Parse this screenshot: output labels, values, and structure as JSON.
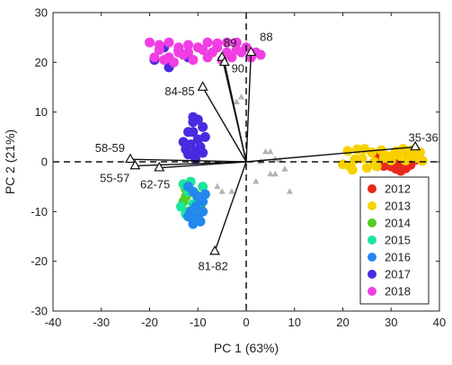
{
  "chart_data": {
    "type": "scatter",
    "title": "",
    "xlabel": "PC 1 (63%)",
    "ylabel": "PC 2 (21%)",
    "xlim": [
      -40,
      40
    ],
    "ylim": [
      -30,
      30
    ],
    "xticks": [
      -40,
      -30,
      -20,
      -10,
      0,
      10,
      20,
      30,
      40
    ],
    "yticks": [
      -30,
      -20,
      -10,
      0,
      10,
      20,
      30
    ],
    "reference_lines": {
      "x0": "dashed",
      "y0": "dashed"
    },
    "legend_position": "bottom-right",
    "series": [
      {
        "name": "2012",
        "color": "#e8281a",
        "points": [
          [
            27,
            1.5
          ],
          [
            28,
            0.6
          ],
          [
            29,
            -0.2
          ],
          [
            30,
            -0.9
          ],
          [
            31,
            -1.4
          ],
          [
            32,
            -1.8
          ],
          [
            33,
            -1.3
          ],
          [
            34,
            -0.6
          ],
          [
            35,
            0.4
          ],
          [
            32.5,
            0.9
          ],
          [
            30.5,
            0.2
          ],
          [
            28.5,
            -0.8
          ],
          [
            33.5,
            -0.2
          ],
          [
            29.5,
            0.9
          ],
          [
            31.5,
            -0.7
          ]
        ]
      },
      {
        "name": "2013",
        "color": "#f7d100",
        "points": [
          [
            20,
            -0.5
          ],
          [
            21,
            2.2
          ],
          [
            22,
            -1.6
          ],
          [
            23,
            2.5
          ],
          [
            24,
            0.7
          ],
          [
            25,
            -1.2
          ],
          [
            26,
            1.9
          ],
          [
            27,
            -0.9
          ],
          [
            28,
            2.3
          ],
          [
            29,
            1.2
          ],
          [
            30,
            0.3
          ],
          [
            31,
            2.1
          ],
          [
            32,
            1.1
          ],
          [
            33,
            0.3
          ],
          [
            34,
            1.6
          ],
          [
            35,
            0.8
          ],
          [
            36,
            1.9
          ],
          [
            24.5,
            2.6
          ],
          [
            22.5,
            0.5
          ],
          [
            26.5,
            0.0
          ],
          [
            30.5,
            1.4
          ],
          [
            34.5,
            2.4
          ],
          [
            36.5,
            0.2
          ],
          [
            21.5,
            -0.9
          ],
          [
            28.5,
            0.8
          ],
          [
            32.5,
            2.6
          ]
        ]
      },
      {
        "name": "2014",
        "color": "#55cc22",
        "points": [
          [
            -12.5,
            -5.5
          ],
          [
            -13,
            -8
          ],
          [
            -12,
            -10
          ],
          [
            -11.5,
            -11
          ],
          [
            -10.5,
            -6.5
          ],
          [
            -9.5,
            -9
          ],
          [
            -11,
            -9.5
          ],
          [
            -12.5,
            -7
          ]
        ]
      },
      {
        "name": "2015",
        "color": "#19e69c",
        "points": [
          [
            -13,
            -4.5
          ],
          [
            -12,
            -6
          ],
          [
            -11.5,
            -4
          ],
          [
            -10,
            -7.5
          ],
          [
            -9,
            -5
          ],
          [
            -11,
            -8.5
          ],
          [
            -12.5,
            -10.5
          ],
          [
            -10.5,
            -11
          ],
          [
            -13.5,
            -9
          ]
        ]
      },
      {
        "name": "2016",
        "color": "#2288ee",
        "points": [
          [
            -12,
            -5
          ],
          [
            -11,
            -6
          ],
          [
            -10,
            -7
          ],
          [
            -9,
            -8
          ],
          [
            -10.5,
            -9
          ],
          [
            -11.5,
            -10
          ],
          [
            -10,
            -11
          ],
          [
            -9.5,
            -12
          ],
          [
            -11,
            -12.5
          ],
          [
            -12,
            -11
          ],
          [
            -9,
            -10
          ],
          [
            -8.5,
            -6.5
          ]
        ]
      },
      {
        "name": "2017",
        "color": "#4a2ae0",
        "points": [
          [
            -13,
            4
          ],
          [
            -12,
            6
          ],
          [
            -11,
            8
          ],
          [
            -10,
            4.5
          ],
          [
            -9,
            7
          ],
          [
            -8.5,
            5
          ],
          [
            -12.5,
            2.5
          ],
          [
            -11.5,
            3.5
          ],
          [
            -10.5,
            2
          ],
          [
            -9.5,
            3
          ],
          [
            -11,
            6
          ],
          [
            -10,
            8.5
          ],
          [
            -12,
            1.5
          ],
          [
            -9,
            1.8
          ],
          [
            -11,
            9
          ],
          [
            -10.5,
            0.5
          ],
          [
            -14,
            22.5
          ],
          [
            -17,
            23
          ],
          [
            -16,
            19
          ],
          [
            -19,
            20.5
          ],
          [
            -12,
            21
          ]
        ]
      },
      {
        "name": "2018",
        "color": "#f03ee3",
        "points": [
          [
            -20,
            24
          ],
          [
            -18,
            23.5
          ],
          [
            -16,
            24
          ],
          [
            -14,
            23
          ],
          [
            -12,
            22
          ],
          [
            -10,
            23
          ],
          [
            -8,
            24
          ],
          [
            -6,
            23
          ],
          [
            -4,
            22
          ],
          [
            -2,
            24
          ],
          [
            0,
            23
          ],
          [
            2,
            22
          ],
          [
            3,
            21.5
          ],
          [
            -19,
            21
          ],
          [
            -17,
            20.5
          ],
          [
            -15,
            20
          ],
          [
            -13,
            21.5
          ],
          [
            -11,
            20.5
          ],
          [
            -9,
            22.5
          ],
          [
            -7,
            22
          ],
          [
            -5,
            20.5
          ],
          [
            -3,
            21
          ],
          [
            -1,
            22
          ],
          [
            1,
            21
          ],
          [
            -18,
            22.5
          ],
          [
            -14,
            22
          ],
          [
            -8,
            21
          ],
          [
            -6,
            23.8
          ],
          [
            -2,
            22.5
          ],
          [
            -16,
            21
          ],
          [
            -12,
            23.5
          ],
          [
            -4,
            24
          ]
        ]
      }
    ],
    "grey_markers": [
      [
        -2,
        12
      ],
      [
        -6,
        -5
      ],
      [
        -5,
        -6
      ],
      [
        -3,
        -6
      ],
      [
        2,
        -4
      ],
      [
        3,
        0
      ],
      [
        4,
        2
      ],
      [
        5,
        2
      ],
      [
        6,
        0.5
      ],
      [
        5,
        -2.5
      ],
      [
        6,
        -2.5
      ],
      [
        8,
        -1.5
      ],
      [
        9,
        -6
      ],
      [
        -1,
        13
      ],
      [
        7,
        0.3
      ]
    ],
    "loadings": [
      {
        "label": "88",
        "x": 1,
        "y": 22
      },
      {
        "label": "89",
        "x": -5,
        "y": 21
      },
      {
        "label": "90",
        "x": -4.5,
        "y": 20
      },
      {
        "label": "84-85",
        "x": -9,
        "y": 15
      },
      {
        "label": "58-59",
        "x": -24,
        "y": 0.5
      },
      {
        "label": "55-57",
        "x": -23,
        "y": -0.8
      },
      {
        "label": "62-75",
        "x": -18,
        "y": -1.2
      },
      {
        "label": "81-82",
        "x": -6.5,
        "y": -18
      },
      {
        "label": "35-36",
        "x": 35,
        "y": 3
      }
    ]
  }
}
